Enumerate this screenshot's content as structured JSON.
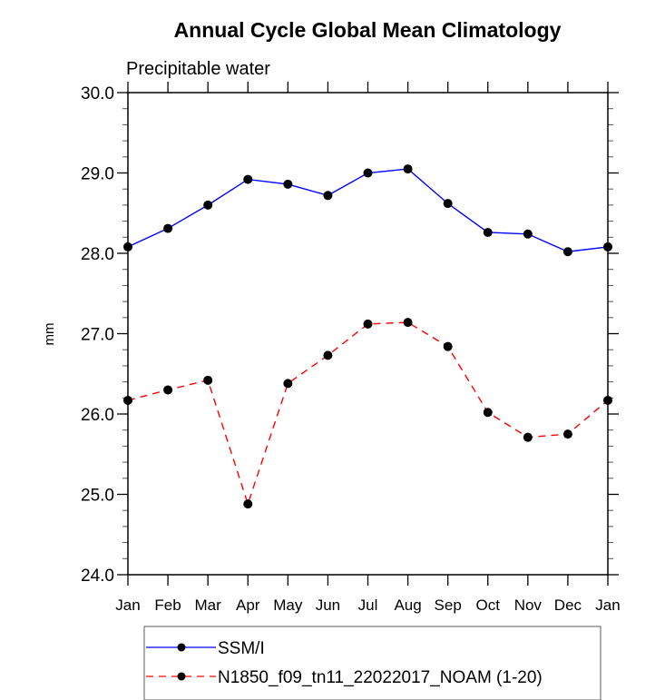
{
  "chart_data": {
    "type": "line",
    "title": "Annual Cycle Global Mean Climatology",
    "subtitle": "Precipitable water",
    "xlabel": "",
    "ylabel": "mm",
    "ylim": [
      24.0,
      30.0
    ],
    "yticks": [
      "24.0",
      "25.0",
      "26.0",
      "27.0",
      "28.0",
      "29.0",
      "30.0"
    ],
    "ytick_values": [
      24.0,
      25.0,
      26.0,
      27.0,
      28.0,
      29.0,
      30.0
    ],
    "y_minor_step": 0.2,
    "categories": [
      "Jan",
      "Feb",
      "Mar",
      "Apr",
      "May",
      "Jun",
      "Jul",
      "Aug",
      "Sep",
      "Oct",
      "Nov",
      "Dec",
      "Jan"
    ],
    "grid": false,
    "legend_position": "bottom",
    "series": [
      {
        "name": "SSM/I",
        "color": "#0000ff",
        "line_style": "solid",
        "marker": "filled-circle",
        "values": [
          28.08,
          28.31,
          28.6,
          28.92,
          28.86,
          28.72,
          29.0,
          29.05,
          28.62,
          28.26,
          28.24,
          28.02,
          28.08
        ]
      },
      {
        "name": "N1850_f09_tn11_22022017_NOAM (1-20)",
        "color": "#ff0000",
        "line_style": "dashed",
        "marker": "filled-circle",
        "values": [
          26.17,
          26.3,
          26.42,
          24.88,
          26.38,
          26.73,
          27.12,
          27.14,
          26.84,
          26.02,
          25.71,
          25.75,
          26.17
        ]
      }
    ]
  }
}
